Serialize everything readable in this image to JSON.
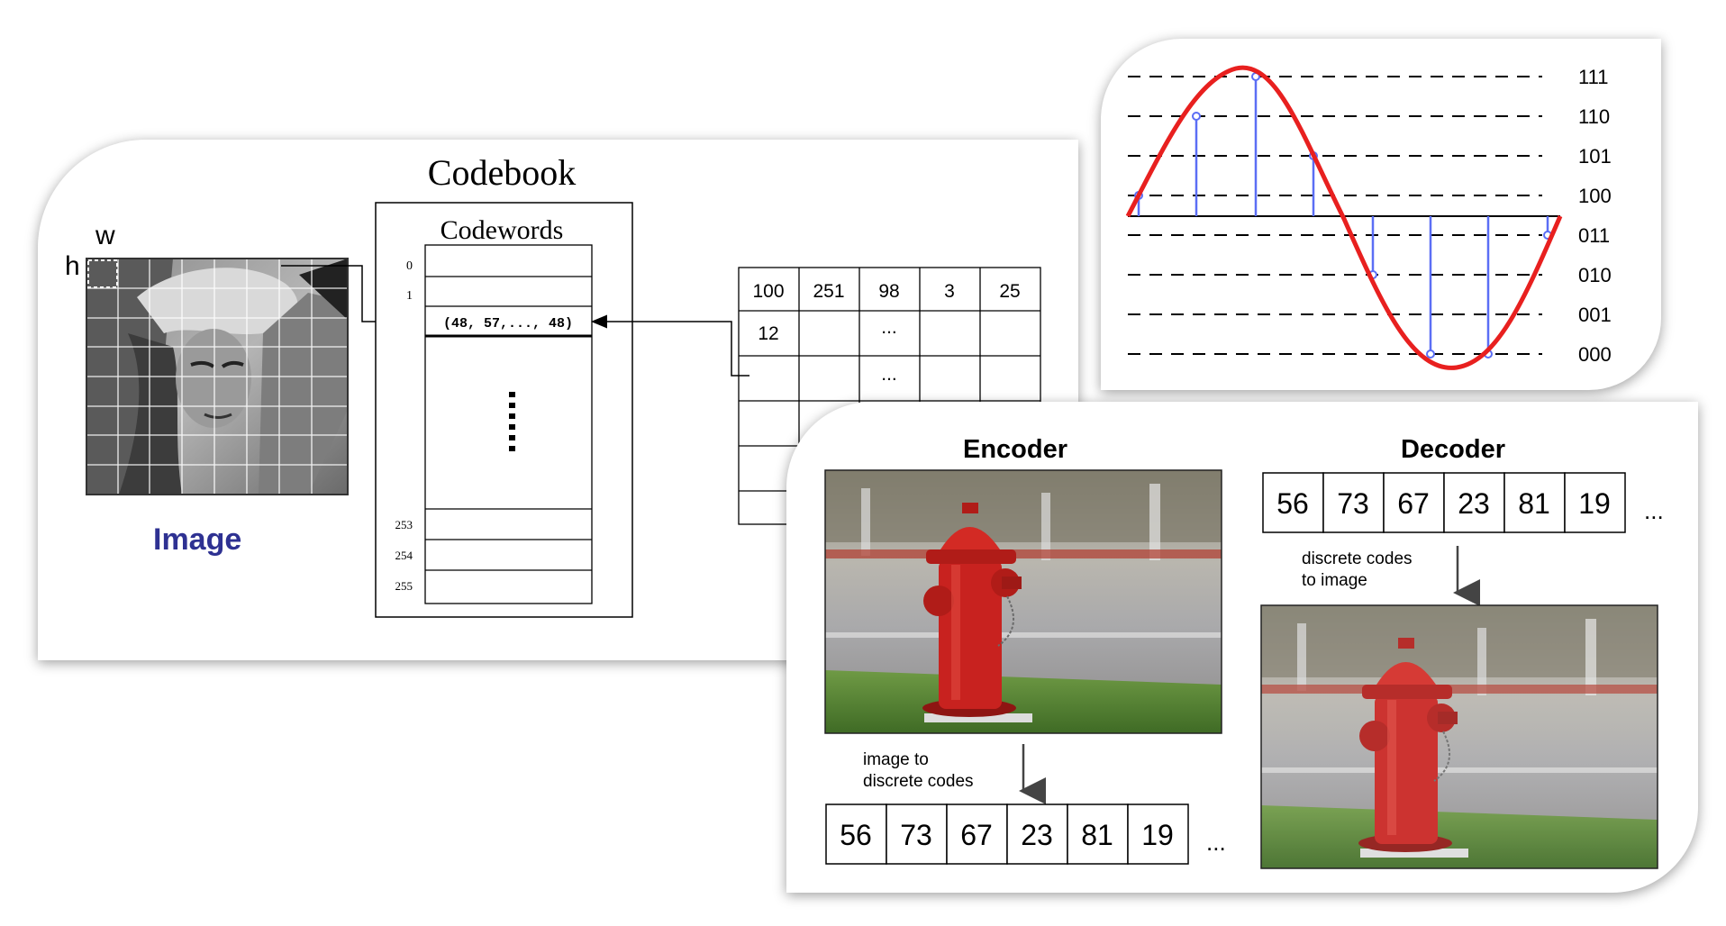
{
  "codebook_panel": {
    "title": "Codebook",
    "codewords_label": "Codewords",
    "w_label": "w",
    "h_label": "h",
    "image_label": "Image",
    "indices": [
      "0",
      "1",
      "253",
      "254",
      "255"
    ],
    "codeword_value": "(48, 57,..., 48)",
    "index_table": [
      [
        "100",
        "251",
        "98",
        "3",
        "25"
      ],
      [
        "12",
        "",
        "...",
        "",
        ""
      ],
      [
        "",
        "",
        "...",
        "",
        ""
      ]
    ]
  },
  "quantization_panel": {
    "levels": [
      "111",
      "110",
      "101",
      "100",
      "011",
      "010",
      "001",
      "000"
    ]
  },
  "encdec_panel": {
    "encoder_title": "Encoder",
    "decoder_title": "Decoder",
    "encoder_caption_line1": "image to",
    "encoder_caption_line2": "discrete codes",
    "decoder_caption_line1": "discrete codes",
    "decoder_caption_line2": "to image",
    "codes": [
      "56",
      "73",
      "67",
      "23",
      "81",
      "19"
    ],
    "ellipsis": "..."
  },
  "colors": {
    "image_label": "#2e3192",
    "wave": "#e8201f",
    "stems": "#5b6ef5",
    "hydrant": "#c8221f"
  }
}
